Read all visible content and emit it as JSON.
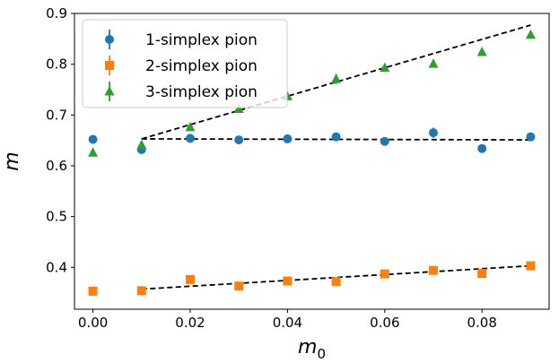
{
  "chart_data": {
    "type": "scatter",
    "xlabel": "m",
    "xlabel_sub": "0",
    "ylabel": "m",
    "xlim": [
      -0.0038,
      0.0938
    ],
    "ylim": [
      0.3175,
      0.9
    ],
    "x_ticks": [
      0.0,
      0.02,
      0.04,
      0.06,
      0.08
    ],
    "x_tick_labels": [
      "0.00",
      "0.02",
      "0.04",
      "0.06",
      "0.08"
    ],
    "y_ticks": [
      0.4,
      0.5,
      0.6,
      0.7,
      0.8,
      0.9
    ],
    "y_tick_labels": [
      "0.4",
      "0.5",
      "0.6",
      "0.7",
      "0.8",
      "0.9"
    ],
    "grid": false,
    "legend_position": "top-left",
    "series": [
      {
        "name": "1-simplex pion",
        "marker": "circle",
        "color": "#1f77b4",
        "x": [
          0.0,
          0.01,
          0.02,
          0.03,
          0.04,
          0.05,
          0.06,
          0.07,
          0.08,
          0.09
        ],
        "y": [
          0.652,
          0.632,
          0.654,
          0.651,
          0.653,
          0.657,
          0.648,
          0.665,
          0.634,
          0.657
        ],
        "yerr": [
          0.003,
          0.004,
          0.004,
          0.008,
          0.004,
          0.004,
          0.004,
          0.01,
          0.004,
          0.004
        ],
        "fit": {
          "x": [
            0.01,
            0.09
          ],
          "y": [
            0.653,
            0.651
          ]
        }
      },
      {
        "name": "2-simplex pion",
        "marker": "square",
        "color": "#ff7f0e",
        "x": [
          0.0,
          0.01,
          0.02,
          0.03,
          0.04,
          0.05,
          0.06,
          0.07,
          0.08,
          0.09
        ],
        "y": [
          0.353,
          0.354,
          0.376,
          0.363,
          0.373,
          0.372,
          0.387,
          0.394,
          0.388,
          0.403
        ],
        "yerr": [
          0.003,
          0.004,
          0.004,
          0.004,
          0.004,
          0.006,
          0.004,
          0.004,
          0.004,
          0.004
        ],
        "fit": {
          "x": [
            0.01,
            0.09
          ],
          "y": [
            0.357,
            0.403
          ]
        }
      },
      {
        "name": "3-simplex pion",
        "marker": "triangle",
        "color": "#2ca02c",
        "x": [
          0.0,
          0.01,
          0.02,
          0.03,
          0.04,
          0.05,
          0.06,
          0.07,
          0.08,
          0.09
        ],
        "y": [
          0.626,
          0.641,
          0.676,
          0.712,
          0.737,
          0.771,
          0.793,
          0.801,
          0.824,
          0.858
        ],
        "yerr": [
          0.004,
          0.008,
          0.006,
          0.006,
          0.006,
          0.01,
          0.006,
          0.006,
          0.006,
          0.006
        ],
        "fit": {
          "x": [
            0.01,
            0.09
          ],
          "y": [
            0.653,
            0.877
          ]
        }
      }
    ],
    "fit_line_color": "#000000"
  }
}
